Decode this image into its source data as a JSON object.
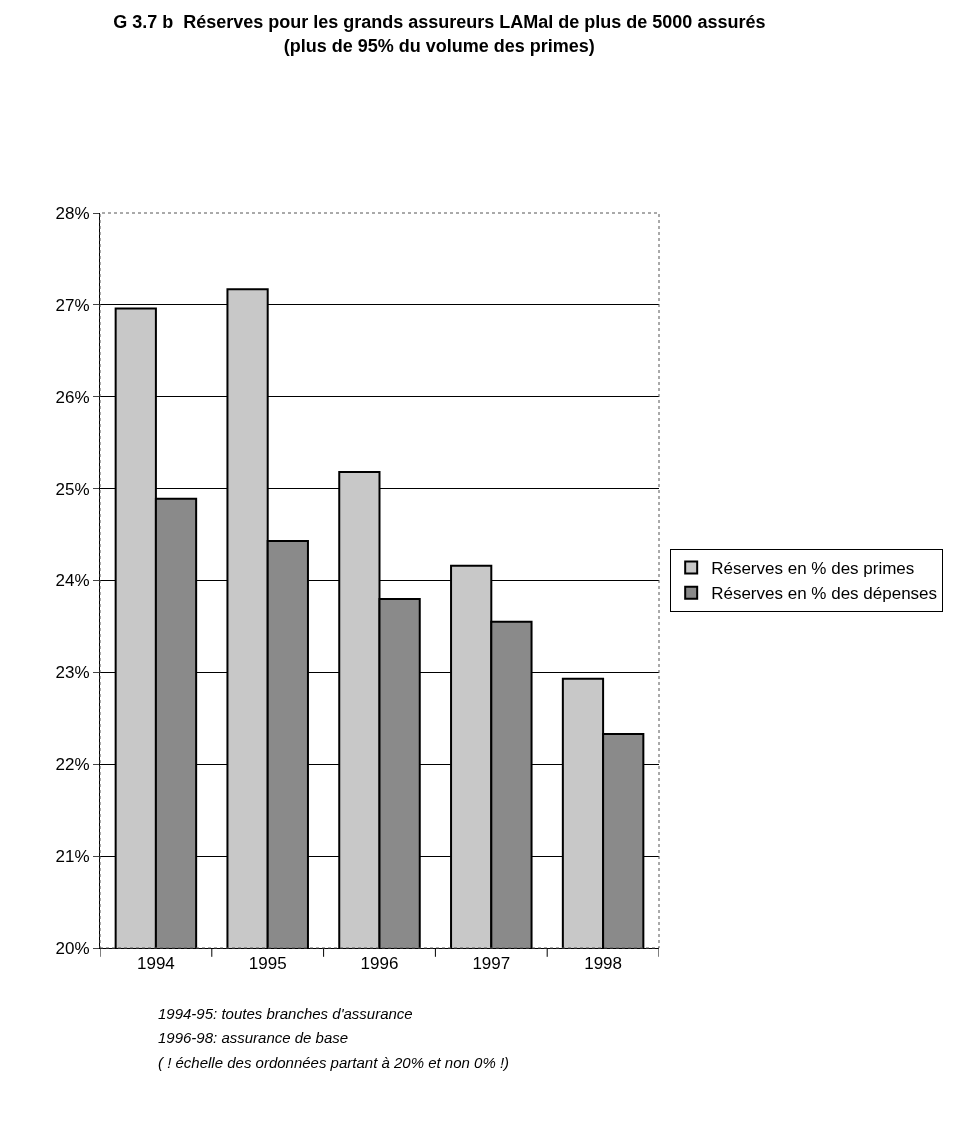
{
  "chart_data": {
    "type": "bar",
    "title": "G 3.7 b  Réserves pour les grands assureurs LAMal de plus de 5000 assurés\n(plus de 95% du volume des primes)",
    "categories": [
      "1994",
      "1995",
      "1996",
      "1997",
      "1998"
    ],
    "series": [
      {
        "name": "Réserves en % des primes",
        "color": "#c8c8c8",
        "values": [
          26.96,
          27.17,
          25.18,
          24.16,
          22.93
        ]
      },
      {
        "name": "Réserves en % des dépenses",
        "color": "#8a8a8a",
        "values": [
          24.89,
          24.43,
          23.8,
          23.55,
          22.33
        ]
      }
    ],
    "ylim": [
      20,
      28
    ],
    "yticks": [
      {
        "value": 20,
        "label": "20%"
      },
      {
        "value": 21,
        "label": "21%"
      },
      {
        "value": 22,
        "label": "22%"
      },
      {
        "value": 23,
        "label": "23%"
      },
      {
        "value": 24,
        "label": "24%"
      },
      {
        "value": 25,
        "label": "25%"
      },
      {
        "value": 26,
        "label": "26%"
      },
      {
        "value": 27,
        "label": "27%"
      },
      {
        "value": 28,
        "label": "28%"
      }
    ],
    "grid": "y",
    "legend": "right",
    "annotations": [
      "1994-95: toutes branches d'assurance",
      "1996-98: assurance de base",
      "( ! échelle des ordonnées partant à 20% et non 0% !)"
    ]
  }
}
